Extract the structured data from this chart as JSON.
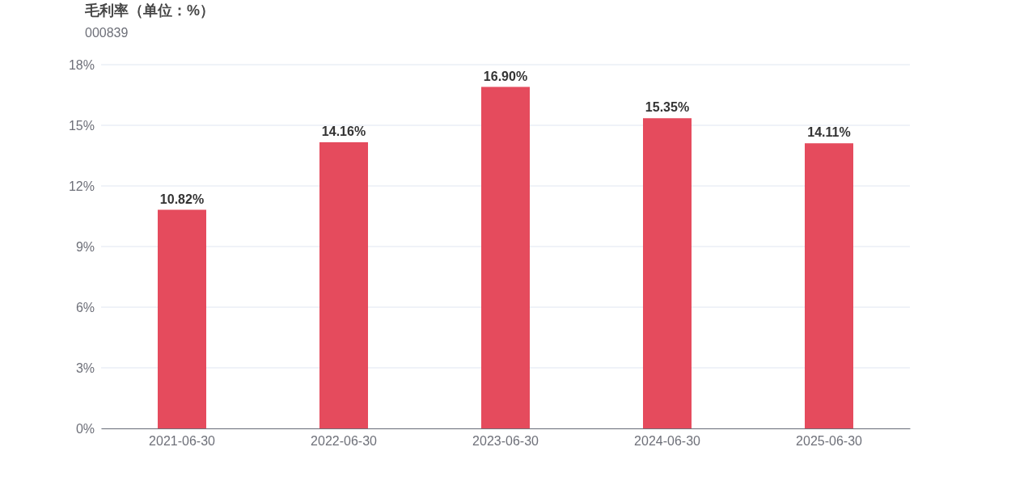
{
  "chart_data": {
    "type": "bar",
    "title": "毛利率（单位：%）",
    "subtitle": "000839",
    "categories": [
      "2021-06-30",
      "2022-06-30",
      "2023-06-30",
      "2024-06-30",
      "2025-06-30"
    ],
    "values": [
      10.82,
      14.16,
      16.9,
      15.35,
      14.11
    ],
    "value_labels": [
      "10.82%",
      "14.16%",
      "16.90%",
      "15.35%",
      "14.11%"
    ],
    "color": "#e54b5d",
    "ylim": [
      0,
      18
    ],
    "yticks": [
      {
        "value": 0,
        "label": "0%"
      },
      {
        "value": 3,
        "label": "3%"
      },
      {
        "value": 6,
        "label": "6%"
      },
      {
        "value": 9,
        "label": "9%"
      },
      {
        "value": 12,
        "label": "12%"
      },
      {
        "value": 15,
        "label": "15%"
      },
      {
        "value": 18,
        "label": "18%"
      }
    ],
    "grid": "y"
  }
}
